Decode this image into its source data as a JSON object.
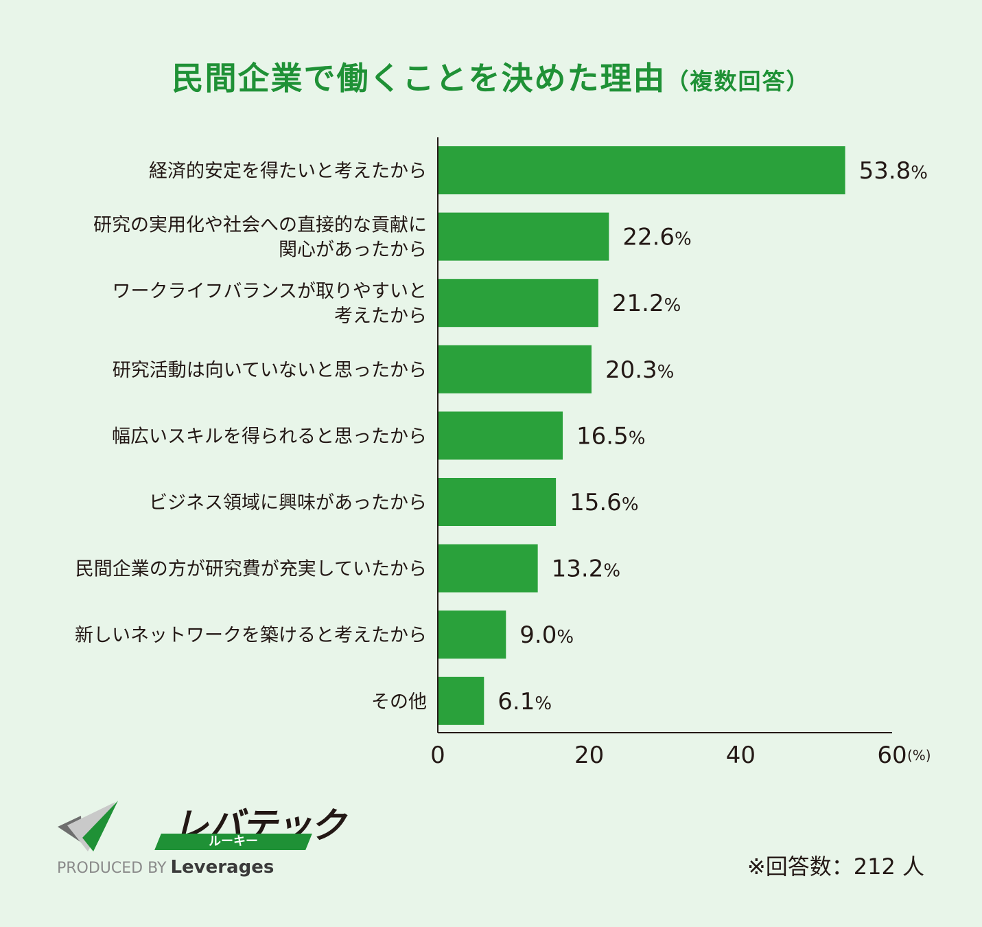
{
  "title": {
    "main": "民間企業で働くことを決めた理由",
    "sub": "（複数回答）"
  },
  "chart_data": {
    "type": "bar",
    "orientation": "horizontal",
    "categories": [
      [
        "経済的安定を得たいと考えたから"
      ],
      [
        "研究の実用化や社会への直接的な貢献に",
        "関心があったから"
      ],
      [
        "ワークライフバランスが取りやすいと",
        "考えたから"
      ],
      [
        "研究活動は向いていないと思ったから"
      ],
      [
        "幅広いスキルを得られると思ったから"
      ],
      [
        "ビジネス領域に興味があったから"
      ],
      [
        "民間企業の方が研究費が充実していたから"
      ],
      [
        "新しいネットワークを築けると考えたから"
      ],
      [
        "その他"
      ]
    ],
    "values": [
      53.8,
      22.6,
      21.2,
      20.3,
      16.5,
      15.6,
      13.2,
      9.0,
      6.1
    ],
    "value_labels": [
      "53.8",
      "22.6",
      "21.2",
      "20.3",
      "16.5",
      "15.6",
      "13.2",
      "9.0",
      "6.1"
    ],
    "value_suffix": "%",
    "xlim": [
      0,
      60
    ],
    "xticks": [
      "0",
      "20",
      "40",
      "60"
    ],
    "unit": "(%)",
    "bar_color": "#2aa13b",
    "grid": false
  },
  "logo": {
    "name": "レバテック",
    "band": "ルーキー",
    "produced_by": "PRODUCED BY",
    "brand": "Leverages"
  },
  "note": "※回答数：212 人"
}
